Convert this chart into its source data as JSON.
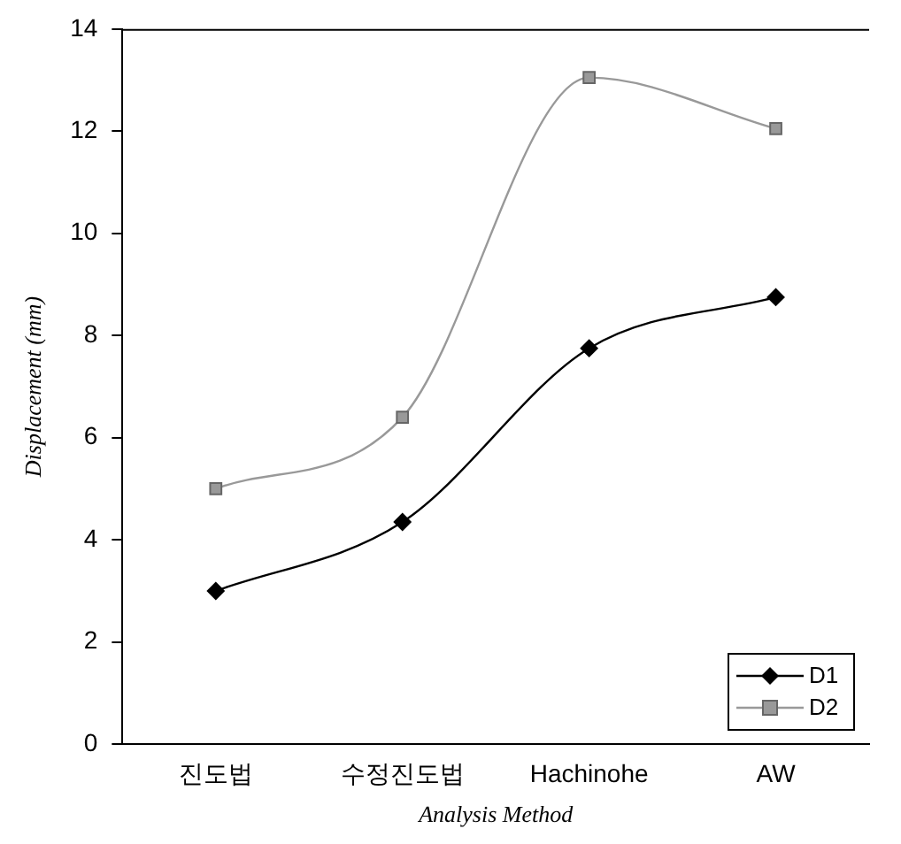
{
  "chart_data": {
    "type": "line",
    "xlabel": "Analysis Method",
    "ylabel": "Displacement (mm)",
    "categories": [
      "진도법",
      "수정진도법",
      "Hachinohe",
      "AW"
    ],
    "series": [
      {
        "name": "D1",
        "color": "#000000",
        "marker": "diamond",
        "values": [
          3.0,
          4.35,
          7.75,
          8.75
        ]
      },
      {
        "name": "D2",
        "color": "#999999",
        "marker": "square",
        "values": [
          5.0,
          6.4,
          13.05,
          12.05
        ]
      }
    ],
    "ylim": [
      0,
      14
    ],
    "yticks": [
      0,
      2,
      4,
      6,
      8,
      10,
      12,
      14
    ],
    "grid": false,
    "legend": "bottom right"
  }
}
